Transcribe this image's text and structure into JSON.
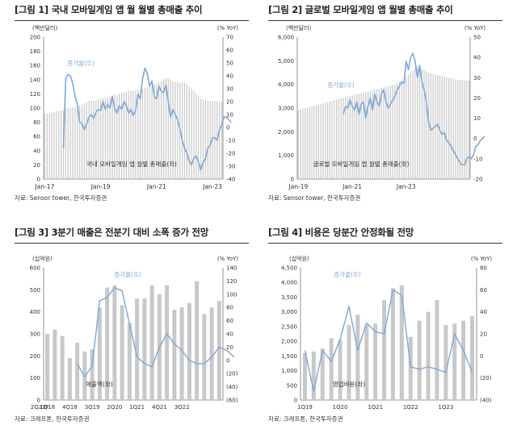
{
  "figures": [
    {
      "title": "[그림 1] 국내 모바일게임 앱 월 월별 총매출 추이",
      "source": "자료: Sensor tower, 한국투자증권"
    },
    {
      "title": "[그림 2] 글로벌 모바일게임 앱 월별 총매출 추이",
      "source": "자료: Sensor tower, 한국투자증권"
    },
    {
      "title": "[그림 3] 3분기 매출은 전분기 대비 소폭 증가 전망",
      "source": "자료: 크래프톤, 한국투자증권"
    },
    {
      "title": "[그림 4] 비용은 당분간 안정화될 전망",
      "source": "자료: 크래프톤, 한국투자증권"
    }
  ],
  "chart_data": [
    {
      "type": "bar",
      "left_unit": "(백만달러)",
      "right_unit": "(% YoY)",
      "left_ticks": [
        "200",
        "180",
        "160",
        "140",
        "120",
        "100",
        "80",
        "60",
        "40",
        "20",
        "0"
      ],
      "right_ticks": [
        "70",
        "60",
        "50",
        "40",
        "30",
        "20",
        "10",
        "0",
        "-10",
        "-20",
        "-30",
        "-40"
      ],
      "ylim_left": [
        0,
        200
      ],
      "ylim_right": [
        -40,
        70
      ],
      "x_ticks": [
        "Jan-17",
        "Jan-19",
        "Jan-21",
        "Jan-23"
      ],
      "bar_label": "국내 모바일게임 앱 월별 총매출(좌)",
      "line_label": "증가율(우)",
      "bar_color": "#c8c8c8",
      "line_color": "#7fa7d6",
      "bars": [
        92,
        92,
        93,
        94,
        95,
        96,
        96,
        97,
        97,
        99,
        100,
        100,
        101,
        101,
        103,
        104,
        105,
        106,
        108,
        110,
        110,
        111,
        111,
        112,
        113,
        113,
        115,
        115,
        116,
        118,
        119,
        118,
        120,
        121,
        122,
        123,
        124,
        125,
        124,
        125,
        126,
        126,
        127,
        128,
        129,
        130,
        131,
        133,
        134,
        136,
        138,
        140,
        142,
        142,
        140,
        138,
        137,
        137,
        136,
        136,
        135,
        133,
        130,
        127,
        124,
        120,
        116,
        113,
        112,
        111,
        110,
        110,
        110,
        110,
        110,
        109,
        109
      ],
      "line_start": 8,
      "line": [
        -16,
        38,
        41,
        40,
        34,
        24,
        18,
        4,
        3,
        -2,
        3,
        8,
        10,
        7,
        12,
        14,
        13,
        20,
        14,
        18,
        15,
        24,
        15,
        11,
        17,
        14,
        20,
        17,
        11,
        14,
        9,
        13,
        26,
        22,
        38,
        46,
        42,
        32,
        36,
        24,
        22,
        32,
        28,
        27,
        33,
        20,
        8,
        14,
        10,
        6,
        -1,
        -10,
        -16,
        -20,
        -26,
        -29,
        -24,
        -22,
        -27,
        -33,
        -27,
        -24,
        -16,
        -14,
        -8,
        -8,
        -10,
        -2,
        2,
        8,
        8,
        6,
        4
      ]
    },
    {
      "type": "bar",
      "left_unit": "(백만달러)",
      "right_unit": "(% YoY)",
      "left_ticks": [
        "6,000",
        "5,000",
        "4,000",
        "3,000",
        "2,000",
        "1,000",
        "0"
      ],
      "right_ticks": [
        "50",
        "40",
        "30",
        "20",
        "10",
        "0",
        "-10",
        "-20"
      ],
      "ylim_left": [
        0,
        6000
      ],
      "ylim_right": [
        -20,
        50
      ],
      "x_ticks": [
        "Jan-19",
        "Jan-21",
        "Jan-23"
      ],
      "bar_label": "글로벌 모바일게임 앱 월별 총매출(좌)",
      "line_label": "증가율(우)",
      "bar_color": "#c8c8c8",
      "line_color": "#7fa7d6",
      "bars": [
        2900,
        2950,
        2980,
        3000,
        3020,
        3050,
        3070,
        3100,
        3120,
        3150,
        3170,
        3200,
        3220,
        3250,
        3280,
        3300,
        3330,
        3350,
        3380,
        3400,
        3420,
        3450,
        3480,
        3500,
        3520,
        3550,
        3580,
        3600,
        3630,
        3650,
        3670,
        3700,
        3730,
        3750,
        3780,
        3800,
        3820,
        3850,
        3880,
        3900,
        3930,
        3950,
        3980,
        4000,
        4050,
        4100,
        4150,
        4200,
        4300,
        4400,
        4500,
        4600,
        4700,
        4750,
        4700,
        4650,
        4600,
        4550,
        4500,
        4480,
        4450,
        4420,
        4400,
        4380,
        4350,
        4330,
        4300,
        4280,
        4260,
        4240,
        4220,
        4200,
        4190,
        4180,
        4170,
        4160,
        4160
      ],
      "line_start": 20,
      "line": [
        12,
        16,
        15,
        19,
        16,
        14,
        18,
        12,
        17,
        18,
        10,
        16,
        20,
        14,
        22,
        18,
        16,
        22,
        24,
        18,
        15,
        17,
        19,
        21,
        24,
        26,
        28,
        27,
        38,
        34,
        40,
        42,
        38,
        30,
        36,
        28,
        24,
        18,
        8,
        4,
        5,
        6,
        7,
        4,
        2,
        3,
        -1,
        -2,
        -4,
        -6,
        -8,
        -10,
        -12,
        -13,
        -13,
        -10,
        -9,
        -10,
        -8,
        -4,
        -3,
        -1,
        0,
        1
      ]
    },
    {
      "type": "bar",
      "left_unit": "(십억원)",
      "right_unit": "(% YoY)",
      "left_ticks": [
        "600",
        "500",
        "400",
        "300",
        "200",
        "100",
        "0"
      ],
      "right_ticks": [
        "140",
        "120",
        "100",
        "80",
        "60",
        "40",
        "20",
        "0",
        "(20)",
        "(40)",
        "(60)"
      ],
      "ylim_left": [
        0,
        600
      ],
      "ylim_right": [
        -60,
        140
      ],
      "categories": [
        "1Q18",
        "2Q18",
        "3Q18",
        "4Q18",
        "1Q19",
        "2Q19",
        "3Q19",
        "4Q19",
        "1Q20",
        "2Q20",
        "3Q20",
        "4Q20",
        "1Q21",
        "2Q21",
        "3Q21",
        "4Q21",
        "1Q22",
        "2Q22",
        "3Q22",
        "4Q22",
        "1Q23",
        "2Q23",
        "3Q23F",
        "4Q23F"
      ],
      "x_tick_labels": [
        "1Q18",
        "4Q18",
        "3Q19",
        "2Q20",
        "1Q21",
        "4Q21",
        "3Q22",
        "2Q23F"
      ],
      "bar_label": "매출액(좌)",
      "line_label": "증가율(우)",
      "bar_color": "#c8c8c8",
      "line_color": "#7fa7d6",
      "bars": [
        300,
        320,
        290,
        190,
        260,
        220,
        230,
        420,
        510,
        520,
        430,
        350,
        460,
        460,
        520,
        480,
        520,
        410,
        420,
        440,
        540,
        390,
        420,
        450
      ],
      "line_start": 4,
      "line": [
        -5,
        -25,
        -8,
        90,
        95,
        110,
        105,
        55,
        5,
        -5,
        -10,
        20,
        40,
        25,
        15,
        0,
        -5,
        -5,
        5,
        20,
        15,
        5
      ]
    },
    {
      "type": "bar",
      "left_unit": "(십억원)",
      "right_unit": "(% YoY)",
      "left_ticks": [
        "4,500",
        "4,000",
        "3,500",
        "3,000",
        "2,500",
        "2,000",
        "1,500",
        "1,000",
        "500",
        "0"
      ],
      "right_ticks": [
        "80",
        "60",
        "40",
        "20",
        "0",
        "(20)",
        "(40)"
      ],
      "ylim_left": [
        0,
        4500
      ],
      "ylim_right": [
        -40,
        80
      ],
      "categories": [
        "1Q19",
        "2Q19",
        "3Q19",
        "4Q19",
        "1Q20",
        "2Q20",
        "3Q20",
        "4Q20",
        "1Q21",
        "2Q21",
        "3Q21",
        "4Q21",
        "1Q22",
        "2Q22",
        "3Q22",
        "4Q22",
        "1Q23",
        "2Q23",
        "3Q23",
        "4Q23"
      ],
      "x_tick_labels": [
        "1Q19",
        "1Q20",
        "1Q21",
        "1Q22",
        "1Q23"
      ],
      "bar_label": "영업비용(좌)",
      "line_label": "증가율(우)",
      "bar_color": "#c8c8c8",
      "line_color": "#7fa7d6",
      "bars": [
        1600,
        1650,
        1750,
        2100,
        2050,
        2550,
        2900,
        2550,
        2600,
        3400,
        3800,
        3900,
        2150,
        2700,
        3000,
        3400,
        2550,
        2600,
        2700,
        2850
      ],
      "line": [
        5,
        -32,
        5,
        -5,
        15,
        45,
        5,
        30,
        22,
        20,
        60,
        55,
        -10,
        -12,
        -10,
        -12,
        -15,
        20,
        5,
        -15
      ]
    }
  ]
}
